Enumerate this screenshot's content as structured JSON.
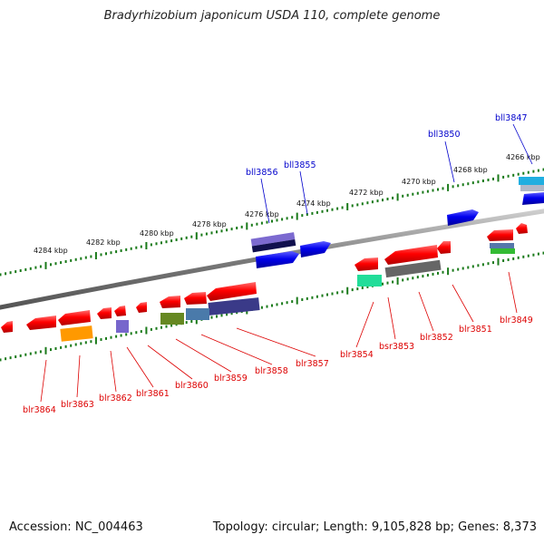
{
  "title": "Bradyrhizobium japonicum USDA 110, complete genome",
  "footer": {
    "accession": "Accession: NC_004463",
    "summary": "Topology: circular; Length: 9,105,828 bp; Genes: 8,373"
  },
  "colors": {
    "backbone": "#888888",
    "tick": "#1a7a1a",
    "forward_label": "#0000cc",
    "reverse_label": "#dd0000"
  },
  "tick_labels": [
    "4266 kbp",
    "4268 kbp",
    "4270 kbp",
    "4272 kbp",
    "4274 kbp",
    "4276 kbp",
    "4278 kbp",
    "4280 kbp",
    "4282 kbp",
    "4284 kbp"
  ],
  "forward_labels": [
    "bll3847",
    "bll3850",
    "bll3855",
    "bll3856"
  ],
  "reverse_labels": [
    "blr3849",
    "blr3851",
    "blr3852",
    "bsr3853",
    "blr3854",
    "blr3857",
    "blr3858",
    "blr3859",
    "blr3860",
    "blr3861",
    "blr3862",
    "blr3863",
    "blr3864"
  ]
}
